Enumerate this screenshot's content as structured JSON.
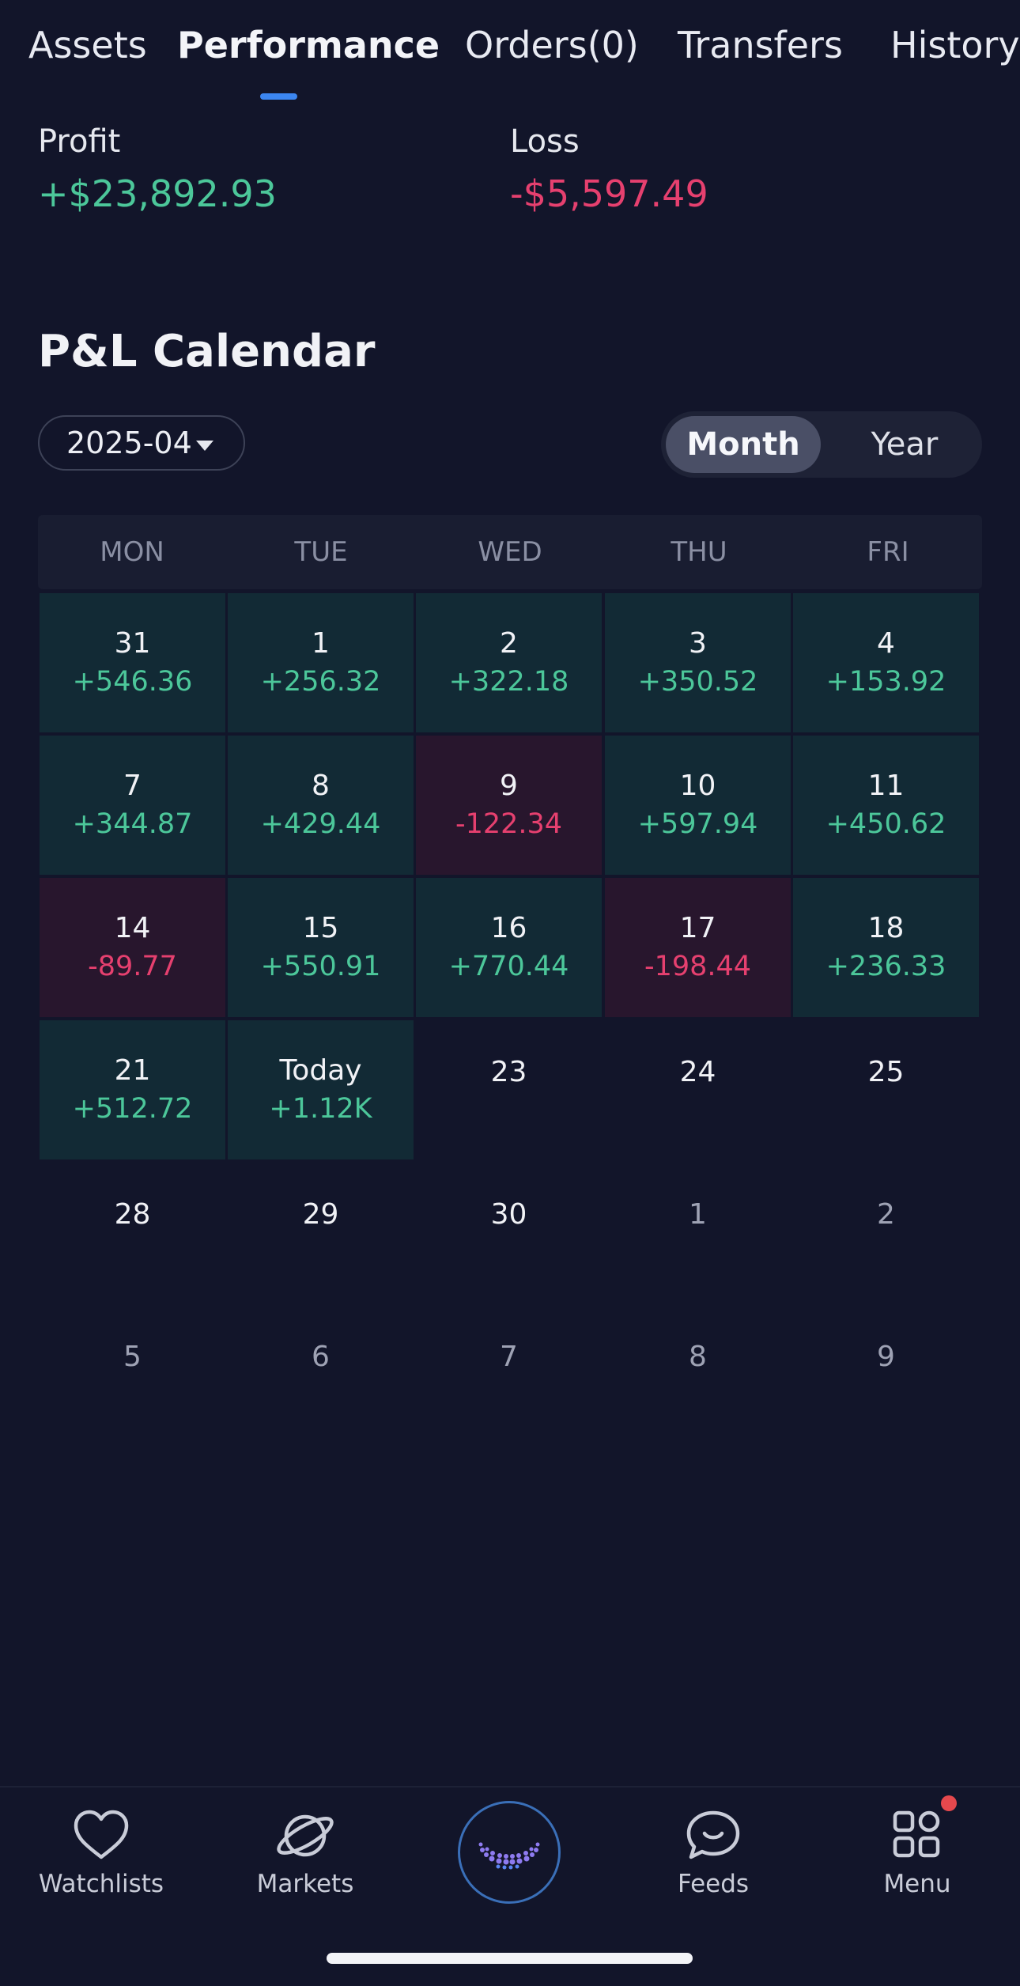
{
  "tabs": [
    {
      "label": "Assets",
      "active": false
    },
    {
      "label": "Performance",
      "active": true
    },
    {
      "label": "Orders(0)",
      "active": false
    },
    {
      "label": "Transfers",
      "active": false
    },
    {
      "label": "History",
      "active": false
    }
  ],
  "summary": {
    "profit_label": "Profit",
    "profit_value": "+$23,892.93",
    "loss_label": "Loss",
    "loss_value": "-$5,597.49"
  },
  "calendar": {
    "title": "P&L Calendar",
    "selected_month": "2025-04",
    "view_toggle": {
      "month_label": "Month",
      "year_label": "Year",
      "selected": "Month"
    },
    "weekdays": [
      "MON",
      "TUE",
      "WED",
      "THU",
      "FRI"
    ],
    "weeks": [
      [
        {
          "day": "31",
          "pnl": "+546.36",
          "status": "gain"
        },
        {
          "day": "1",
          "pnl": "+256.32",
          "status": "gain"
        },
        {
          "day": "2",
          "pnl": "+322.18",
          "status": "gain"
        },
        {
          "day": "3",
          "pnl": "+350.52",
          "status": "gain"
        },
        {
          "day": "4",
          "pnl": "+153.92",
          "status": "gain"
        }
      ],
      [
        {
          "day": "7",
          "pnl": "+344.87",
          "status": "gain"
        },
        {
          "day": "8",
          "pnl": "+429.44",
          "status": "gain"
        },
        {
          "day": "9",
          "pnl": "-122.34",
          "status": "loss"
        },
        {
          "day": "10",
          "pnl": "+597.94",
          "status": "gain"
        },
        {
          "day": "11",
          "pnl": "+450.62",
          "status": "gain"
        }
      ],
      [
        {
          "day": "14",
          "pnl": "-89.77",
          "status": "loss"
        },
        {
          "day": "15",
          "pnl": "+550.91",
          "status": "gain"
        },
        {
          "day": "16",
          "pnl": "+770.44",
          "status": "gain"
        },
        {
          "day": "17",
          "pnl": "-198.44",
          "status": "loss"
        },
        {
          "day": "18",
          "pnl": "+236.33",
          "status": "gain"
        }
      ],
      [
        {
          "day": "21",
          "pnl": "+512.72",
          "status": "gain"
        },
        {
          "day": "Today",
          "pnl": "+1.12K",
          "status": "gain"
        },
        {
          "day": "23",
          "pnl": "",
          "status": "empty"
        },
        {
          "day": "24",
          "pnl": "",
          "status": "empty"
        },
        {
          "day": "25",
          "pnl": "",
          "status": "empty"
        }
      ],
      [
        {
          "day": "28",
          "pnl": "",
          "status": "empty"
        },
        {
          "day": "29",
          "pnl": "",
          "status": "empty"
        },
        {
          "day": "30",
          "pnl": "",
          "status": "empty"
        },
        {
          "day": "1",
          "pnl": "",
          "status": "dim"
        },
        {
          "day": "2",
          "pnl": "",
          "status": "dim"
        }
      ],
      [
        {
          "day": "5",
          "pnl": "",
          "status": "dim"
        },
        {
          "day": "6",
          "pnl": "",
          "status": "dim"
        },
        {
          "day": "7",
          "pnl": "",
          "status": "dim"
        },
        {
          "day": "8",
          "pnl": "",
          "status": "dim"
        },
        {
          "day": "9",
          "pnl": "",
          "status": "dim"
        }
      ]
    ]
  },
  "bottom_nav": {
    "items": [
      {
        "label": "Watchlists",
        "icon": "heart-icon"
      },
      {
        "label": "Markets",
        "icon": "planet-icon"
      },
      {
        "label": "Feeds",
        "icon": "chat-bubble-icon"
      },
      {
        "label": "Menu",
        "icon": "grid-icon"
      }
    ],
    "center_icon": "smile-dots-icon",
    "menu_has_badge": true
  },
  "colors": {
    "background": "#12152a",
    "gain": "#4cc79a",
    "loss": "#e6406f",
    "accent": "#3c86f0",
    "gain_cell": "#122a35",
    "loss_cell": "#28162d"
  }
}
